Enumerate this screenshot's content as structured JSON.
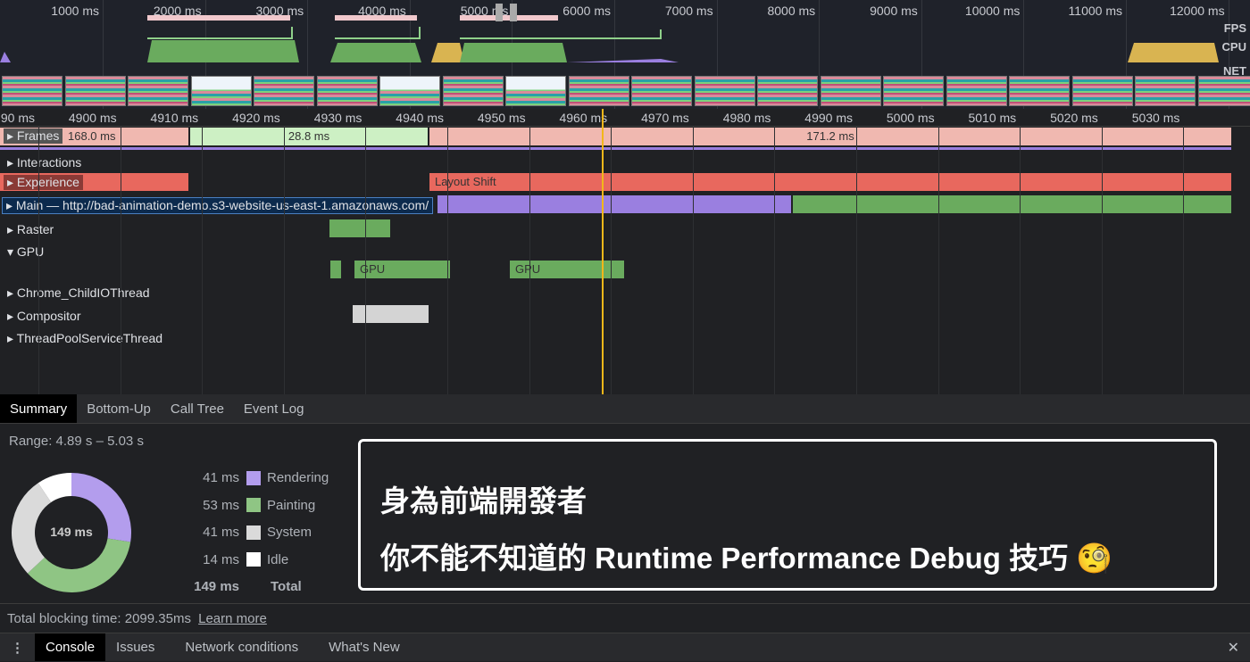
{
  "overview": {
    "ticks": [
      "1000 ms",
      "2000 ms",
      "3000 ms",
      "4000 ms",
      "5000 ms",
      "6000 ms",
      "7000 ms",
      "8000 ms",
      "9000 ms",
      "10000 ms",
      "11000 ms",
      "12000 ms"
    ],
    "lanes": {
      "fps": "FPS",
      "cpu": "CPU",
      "net": "NET"
    }
  },
  "ruler": {
    "ticks": [
      "90 ms",
      "4900 ms",
      "4910 ms",
      "4920 ms",
      "4930 ms",
      "4940 ms",
      "4950 ms",
      "4960 ms",
      "4970 ms",
      "4980 ms",
      "4990 ms",
      "5000 ms",
      "5010 ms",
      "5020 ms",
      "5030 ms"
    ]
  },
  "tracks": {
    "frames": {
      "label": "Frames",
      "bars": [
        "168.0 ms",
        "28.8 ms",
        "171.2 ms"
      ]
    },
    "interactions": {
      "label": "Interactions"
    },
    "experience": {
      "label": "Experience",
      "layout_shift": "Layout Shift"
    },
    "main": {
      "label": "Main — http://bad-animation-demo.s3-website-us-east-1.amazonaws.com/"
    },
    "raster": {
      "label": "Raster"
    },
    "gpu": {
      "label": "GPU",
      "bar1": "GPU",
      "bar2": "GPU"
    },
    "childio": {
      "label": "Chrome_ChildIOThread"
    },
    "compositor": {
      "label": "Compositor"
    },
    "threadpool": {
      "label": "ThreadPoolServiceThread"
    }
  },
  "details_tabs": [
    "Summary",
    "Bottom-Up",
    "Call Tree",
    "Event Log"
  ],
  "summary": {
    "range": "Range: 4.89 s – 5.03 s",
    "total_center": "149 ms",
    "items": [
      {
        "value": "41 ms",
        "label": "Rendering",
        "color": "#b39ded",
        "ms": 41
      },
      {
        "value": "53 ms",
        "label": "Painting",
        "color": "#8fc584",
        "ms": 53
      },
      {
        "value": "41 ms",
        "label": "System",
        "color": "#dadada",
        "ms": 41
      },
      {
        "value": "14 ms",
        "label": "Idle",
        "color": "#ffffff",
        "ms": 14
      }
    ],
    "total_value": "149 ms",
    "total_label": "Total",
    "tbt": "Total blocking time: 2099.35ms",
    "learn_more": "Learn more"
  },
  "drawer": {
    "tabs": [
      "Console",
      "Issues",
      "Network conditions",
      "What's New"
    ],
    "close": "✕"
  },
  "overlay": {
    "line1": "身為前端開發者",
    "line2": "你不能不知道的 Runtime Performance Debug 技巧 🧐"
  },
  "colors": {
    "playhead": "#f3b71a",
    "main_bar": "#9a7fe0",
    "painting": "#6aab5e",
    "frame_red": "#f0b8b0",
    "frame_green": "#cdf0c4",
    "experience": "#e8685e"
  }
}
